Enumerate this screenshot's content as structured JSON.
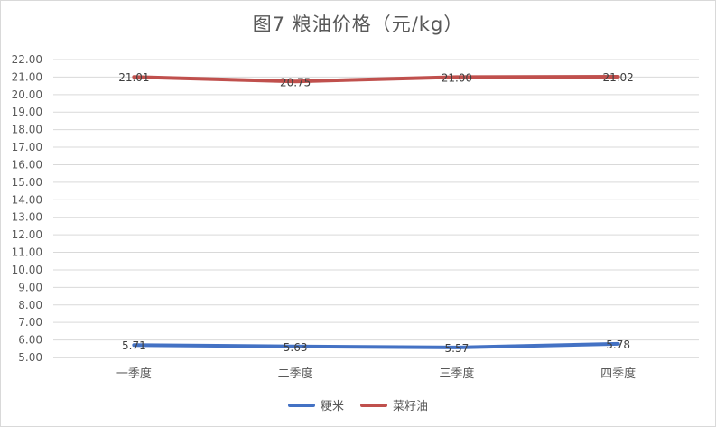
{
  "chart_data": {
    "type": "line",
    "title": "图7  粮油价格（元/kg）",
    "categories": [
      "一季度",
      "二季度",
      "三季度",
      "四季度"
    ],
    "series": [
      {
        "name": "粳米",
        "values": [
          5.71,
          5.63,
          5.57,
          5.78
        ],
        "labels": [
          "5.71",
          "5.63",
          "5.57",
          "5.78"
        ],
        "color": "#4472c4"
      },
      {
        "name": "菜籽油",
        "values": [
          21.01,
          20.75,
          21.0,
          21.02
        ],
        "labels": [
          "21.01",
          "20.75",
          "21.00",
          "21.02"
        ],
        "color": "#c0504d"
      }
    ],
    "ylim": [
      5.0,
      22.0
    ],
    "yticks": [
      "5.00",
      "6.00",
      "7.00",
      "8.00",
      "9.00",
      "10.00",
      "11.00",
      "12.00",
      "13.00",
      "14.00",
      "15.00",
      "16.00",
      "17.00",
      "18.00",
      "19.00",
      "20.00",
      "21.00",
      "22.00"
    ],
    "grid": true,
    "legend": "bottom"
  }
}
